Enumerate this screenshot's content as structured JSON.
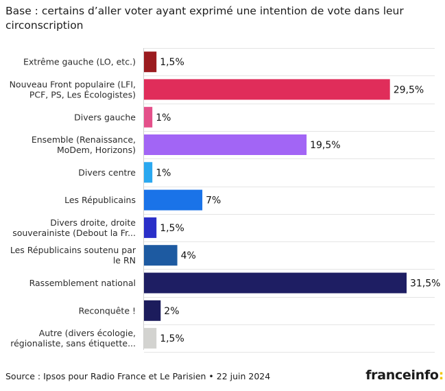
{
  "title": "Base : certains d’aller voter ayant exprimé une intention de vote dans leur circonscription",
  "source": "Source : Ipsos pour Radio France et Le Parisien • 22 juin 2024",
  "logo": {
    "text": "franceinfo",
    "colon": ":"
  },
  "chart_data": {
    "type": "bar",
    "orientation": "horizontal",
    "title": "Base : certains d’aller voter ayant exprimé une intention de vote dans leur circonscription",
    "grid": true,
    "xlim": [
      0,
      36
    ],
    "categories": [
      [
        "Extrême gauche (LO, etc.)"
      ],
      [
        "Nouveau Front populaire (LFI,",
        "PCF, PS, Les Écologistes)"
      ],
      [
        "Divers gauche"
      ],
      [
        "Ensemble (Renaissance,",
        "MoDem, Horizons)"
      ],
      [
        "Divers centre"
      ],
      [
        "Les Républicains"
      ],
      [
        "Divers droite, droite",
        "souverainiste (Debout la Fr..."
      ],
      [
        "Les Républicains soutenu par",
        "le RN"
      ],
      [
        "Rassemblement national"
      ],
      [
        "Reconquête !"
      ],
      [
        "Autre (divers écologie,",
        "régionaliste, sans étiquette..."
      ]
    ],
    "values": [
      1.5,
      29.5,
      1,
      19.5,
      1,
      7,
      1.5,
      4,
      31.5,
      2,
      1.5
    ],
    "value_labels": [
      "1,5%",
      "29,5%",
      "1%",
      "19,5%",
      "1%",
      "7%",
      "1,5%",
      "4%",
      "31,5%",
      "2%",
      "1,5%"
    ],
    "colors": [
      "#9b1b1f",
      "#e02d5a",
      "#e4508a",
      "#a265f5",
      "#2aa8f0",
      "#1a73e8",
      "#2a2fc8",
      "#1d5aa1",
      "#1e1e63",
      "#1c1c5c",
      "#d3d3d0"
    ]
  }
}
